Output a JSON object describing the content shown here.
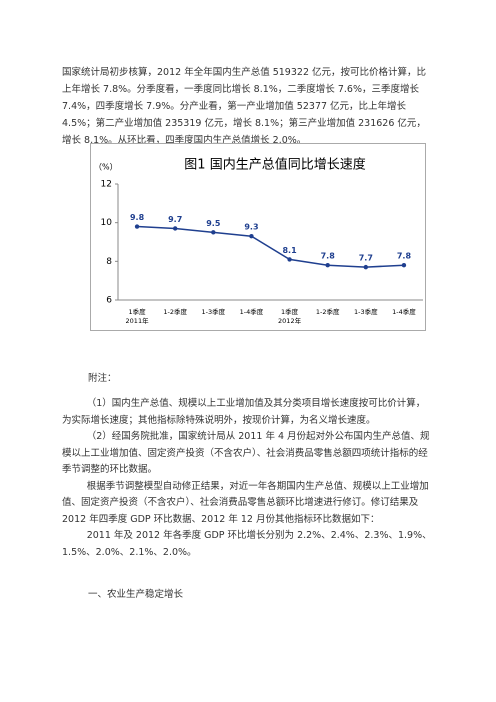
{
  "paragraph": "国家统计局初步核算，2012 年全年国内生产总值 519322 亿元，按可比价格计算，比上年增长 7.8%。分季度看，一季度同比增长 8.1%，二季度增长 7.6%，三季度增长 7.4%，四季度增长 7.9%。分产业看，第一产业增加值 52377 亿元，比上年增长 4.5%；第二产业增加值 235319 亿元，增长 8.1%；第三产业增加值 231626 亿元，增长 8.1%。从环比看，四季度国内生产总值增长 2.0%。",
  "chart_data": {
    "type": "line",
    "title": "图1   国内生产总值同比增长速度",
    "y_label": "（%）",
    "categories": [
      "1季度",
      "1-2季度",
      "1-3季度",
      "1-4季度",
      "1季度",
      "1-2季度",
      "1-3季度",
      "1-4季度"
    ],
    "category_groups": [
      "2011年",
      "2012年"
    ],
    "values": [
      9.8,
      9.7,
      9.5,
      9.3,
      8.1,
      7.8,
      7.7,
      7.8
    ],
    "color": "#1f3f8f",
    "ylim": [
      6,
      12
    ],
    "yticks": [
      6,
      8,
      10,
      12
    ],
    "grid": false
  },
  "notes": {
    "heading": "附注：",
    "items": [
      "（1）国内生产总值、规模以上工业增加值及其分类项目增长速度按可比价计算，为实际增长速度；其他指标除特殊说明外，按现价计算，为名义增长速度。",
      "（2）经国务院批准，国家统计局从 2011 年 4 月份起对外公布国内生产总值、规模以上工业增加值、固定资产投资（不含农户）、社会消费品零售总额四项统计指标的经季节调整的环比数据。",
      "根据季节调整模型自动修正结果，对近一年各期国内生产总值、规模以上工业增加值、固定资产投资（不含农户）、社会消费品零售总额环比增速进行修订。修订结果及 2012 年四季度 GDP 环比数据、2012 年 12 月份其他指标环比数据如下：",
      "2011 年及 2012 年各季度 GDP 环比增长分别为 2.2%、2.4%、2.3%、1.9%、1.5%、2.0%、2.1%、2.0%。"
    ]
  },
  "section_heading": "一、农业生产稳定增长"
}
